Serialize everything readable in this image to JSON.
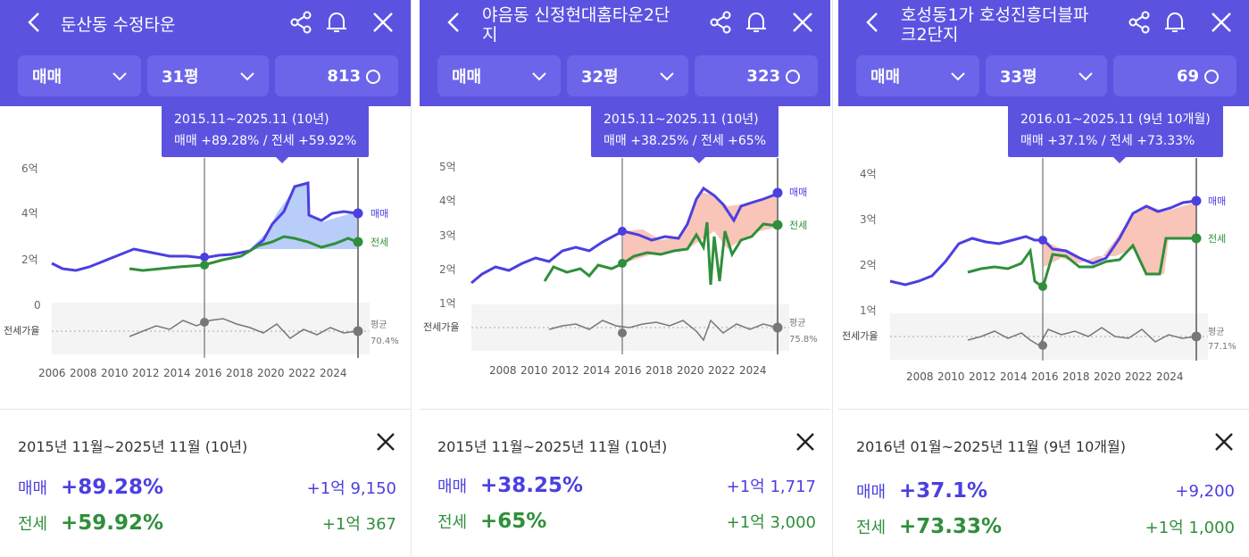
{
  "colors": {
    "header": "#5b53e0",
    "pill": "#6c65ea",
    "sale": "#4b3fe0",
    "jeonse": "#2f8f3b",
    "ratio": "#777777"
  },
  "icons": {
    "back": "chevron-left-icon",
    "share": "share-icon",
    "alarm": "bell-icon",
    "close": "close-icon"
  },
  "panels": [
    {
      "title": "둔산동 수정타운",
      "deal_type": "매매",
      "size": "31평",
      "comment_count": "813",
      "tooltip": {
        "range": "2015.11~2025.11 (10년)",
        "summary": "매매 +89.28%  /  전세 +59.92%"
      },
      "summary": {
        "period": "2015년 11월~2025년 11월 (10년)",
        "sale_label": "매매",
        "sale_pct": "+89.28%",
        "sale_amount": "+1억 9,150",
        "jeonse_label": "전세",
        "jeonse_pct": "+59.92%",
        "jeonse_amount": "+1억 367"
      },
      "chart": {
        "ylabels": [
          "6억",
          "4억",
          "2억",
          "0"
        ],
        "ratio_label": "전세가율",
        "avg_label": "평균",
        "avg_value": "70.4%",
        "sale_label": "매매",
        "jeonse_label": "전세",
        "xlabels": [
          "2006",
          "2008",
          "2010",
          "2012",
          "2014",
          "2016",
          "2018",
          "2020",
          "2022",
          "2024"
        ]
      }
    },
    {
      "title": "야음동 신정현대홈타운2단지",
      "deal_type": "매매",
      "size": "32평",
      "comment_count": "323",
      "tooltip": {
        "range": "2015.11~2025.11 (10년)",
        "summary": "매매 +38.25%  /  전세 +65%"
      },
      "summary": {
        "period": "2015년 11월~2025년 11월 (10년)",
        "sale_label": "매매",
        "sale_pct": "+38.25%",
        "sale_amount": "+1억 1,717",
        "jeonse_label": "전세",
        "jeonse_pct": "+65%",
        "jeonse_amount": "+1억 3,000"
      },
      "chart": {
        "ylabels": [
          "5억",
          "4억",
          "3억",
          "2억",
          "1억"
        ],
        "ratio_label": "전세가율",
        "avg_label": "평균",
        "avg_value": "75.8%",
        "sale_label": "매매",
        "jeonse_label": "전세",
        "xlabels": [
          "2008",
          "2010",
          "2012",
          "2014",
          "2016",
          "2018",
          "2020",
          "2022",
          "2024"
        ]
      }
    },
    {
      "title": "호성동1가 호성진흥더블파크2단지",
      "deal_type": "매매",
      "size": "33평",
      "comment_count": "69",
      "tooltip": {
        "range": "2016.01~2025.11 (9년 10개월)",
        "summary": "매매 +37.1%  /  전세 +73.33%"
      },
      "summary": {
        "period": "2016년 01월~2025년 11월 (9년 10개월)",
        "sale_label": "매매",
        "sale_pct": "+37.1%",
        "sale_amount": "+9,200",
        "jeonse_label": "전세",
        "jeonse_pct": "+73.33%",
        "jeonse_amount": "+1억 1,000"
      },
      "chart": {
        "ylabels": [
          "4억",
          "3억",
          "2억",
          "1억"
        ],
        "ratio_label": "전세가율",
        "avg_label": "평균",
        "avg_value": "77.1%",
        "sale_label": "매매",
        "jeonse_label": "전세",
        "xlabels": [
          "2008",
          "2010",
          "2012",
          "2014",
          "2016",
          "2018",
          "2020",
          "2022",
          "2024"
        ]
      }
    }
  ]
}
